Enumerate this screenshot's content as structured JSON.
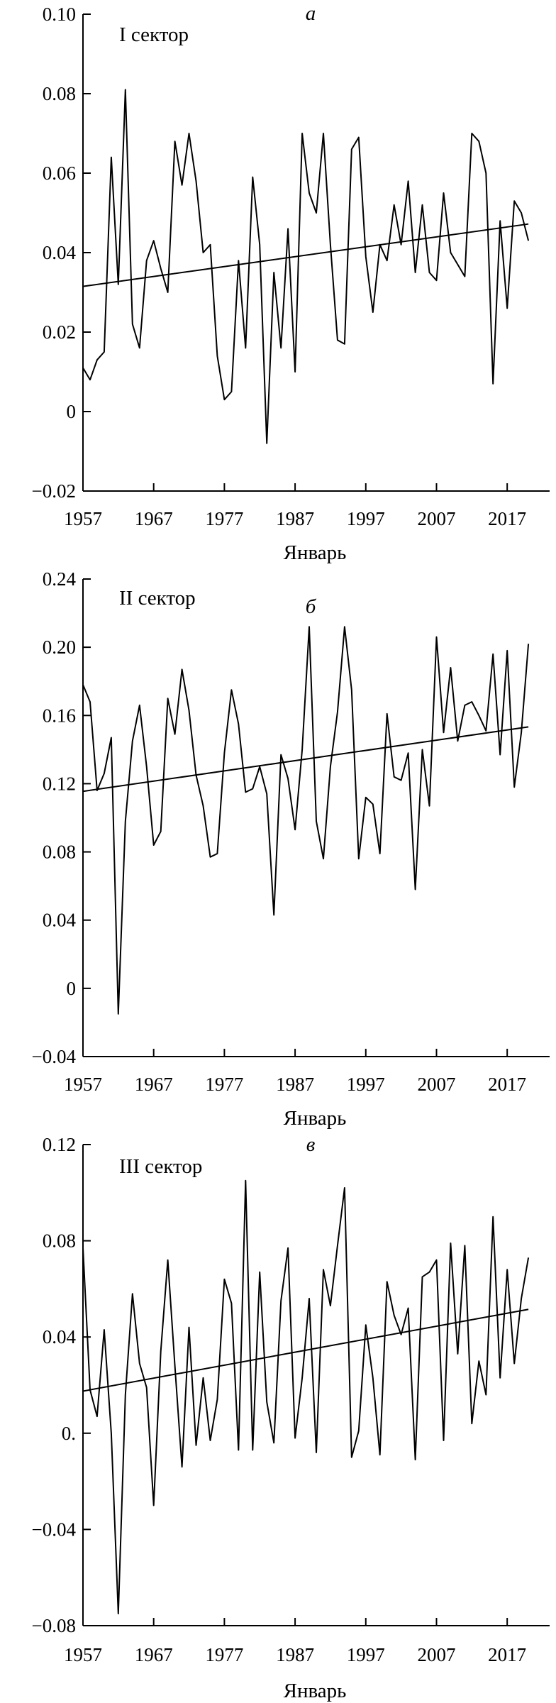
{
  "chart_data": [
    {
      "type": "line",
      "panel_letter": "а",
      "sector_label": "I сектор",
      "xlabel": "Январь",
      "ylabel": "",
      "xlim": [
        1957,
        2023
      ],
      "ylim": [
        -0.02,
        0.1
      ],
      "x_ticks": [
        "1957",
        "1967",
        "1977",
        "1987",
        "1997",
        "2007",
        "2017"
      ],
      "y_ticks": [
        "0.10",
        "0.08",
        "0.06",
        "0.04",
        "0.02",
        "0",
        "−0.02"
      ],
      "y_tick_values": [
        0.1,
        0.08,
        0.06,
        0.04,
        0.02,
        0,
        -0.02
      ],
      "grid": false,
      "series": [
        {
          "values": [
            [
              1957,
              0.011
            ],
            [
              1958,
              0.008
            ],
            [
              1959,
              0.013
            ],
            [
              1960,
              0.015
            ],
            [
              1961,
              0.064
            ],
            [
              1962,
              0.032
            ],
            [
              1963,
              0.081
            ],
            [
              1964,
              0.022
            ],
            [
              1965,
              0.016
            ],
            [
              1966,
              0.038
            ],
            [
              1967,
              0.043
            ],
            [
              1968,
              0.036
            ],
            [
              1969,
              0.03
            ],
            [
              1970,
              0.068
            ],
            [
              1971,
              0.057
            ],
            [
              1972,
              0.07
            ],
            [
              1973,
              0.058
            ],
            [
              1974,
              0.04
            ],
            [
              1975,
              0.042
            ],
            [
              1976,
              0.014
            ],
            [
              1977,
              0.003
            ],
            [
              1978,
              0.005
            ],
            [
              1979,
              0.038
            ],
            [
              1980,
              0.016
            ],
            [
              1981,
              0.059
            ],
            [
              1982,
              0.042
            ],
            [
              1983,
              -0.008
            ],
            [
              1984,
              0.035
            ],
            [
              1985,
              0.016
            ],
            [
              1986,
              0.046
            ],
            [
              1987,
              0.01
            ],
            [
              1988,
              0.07
            ],
            [
              1989,
              0.055
            ],
            [
              1990,
              0.05
            ],
            [
              1991,
              0.07
            ],
            [
              1992,
              0.042
            ],
            [
              1993,
              0.018
            ],
            [
              1994,
              0.017
            ],
            [
              1995,
              0.066
            ],
            [
              1996,
              0.069
            ],
            [
              1997,
              0.039
            ],
            [
              1998,
              0.025
            ],
            [
              1999,
              0.042
            ],
            [
              2000,
              0.038
            ],
            [
              2001,
              0.052
            ],
            [
              2002,
              0.042
            ],
            [
              2003,
              0.058
            ],
            [
              2004,
              0.035
            ],
            [
              2005,
              0.052
            ],
            [
              2006,
              0.035
            ],
            [
              2007,
              0.033
            ],
            [
              2008,
              0.055
            ],
            [
              2009,
              0.04
            ],
            [
              2010,
              0.037
            ],
            [
              2011,
              0.034
            ],
            [
              2012,
              0.07
            ],
            [
              2013,
              0.068
            ],
            [
              2014,
              0.06
            ],
            [
              2015,
              0.007
            ],
            [
              2016,
              0.048
            ],
            [
              2017,
              0.026
            ],
            [
              2018,
              0.053
            ],
            [
              2019,
              0.05
            ],
            [
              2020,
              0.043
            ]
          ]
        }
      ],
      "trend": [
        [
          1957,
          0.0315
        ],
        [
          2020,
          0.0472
        ]
      ]
    },
    {
      "type": "line",
      "panel_letter": "б",
      "sector_label": "II сектор",
      "xlabel": "Январь",
      "ylabel": "",
      "xlim": [
        1957,
        2023
      ],
      "ylim": [
        -0.04,
        0.24
      ],
      "x_ticks": [
        "1957",
        "1967",
        "1977",
        "1987",
        "1997",
        "2007",
        "2017"
      ],
      "y_ticks": [
        "0.24",
        "0.20",
        "0.16",
        "0.12",
        "0.08",
        "0.04",
        "0",
        "−0.04"
      ],
      "y_tick_values": [
        0.24,
        0.2,
        0.16,
        0.12,
        0.08,
        0.04,
        0,
        -0.04
      ],
      "grid": false,
      "series": [
        {
          "values": [
            [
              1957,
              0.178
            ],
            [
              1958,
              0.168
            ],
            [
              1959,
              0.116
            ],
            [
              1960,
              0.126
            ],
            [
              1961,
              0.147
            ],
            [
              1962,
              -0.015
            ],
            [
              1963,
              0.098
            ],
            [
              1964,
              0.145
            ],
            [
              1965,
              0.166
            ],
            [
              1966,
              0.13
            ],
            [
              1967,
              0.084
            ],
            [
              1968,
              0.092
            ],
            [
              1969,
              0.17
            ],
            [
              1970,
              0.149
            ],
            [
              1971,
              0.187
            ],
            [
              1972,
              0.163
            ],
            [
              1973,
              0.125
            ],
            [
              1974,
              0.107
            ],
            [
              1975,
              0.077
            ],
            [
              1976,
              0.079
            ],
            [
              1977,
              0.138
            ],
            [
              1978,
              0.175
            ],
            [
              1979,
              0.155
            ],
            [
              1980,
              0.115
            ],
            [
              1981,
              0.117
            ],
            [
              1982,
              0.13
            ],
            [
              1983,
              0.114
            ],
            [
              1984,
              0.043
            ],
            [
              1985,
              0.137
            ],
            [
              1986,
              0.123
            ],
            [
              1987,
              0.093
            ],
            [
              1988,
              0.14
            ],
            [
              1989,
              0.212
            ],
            [
              1990,
              0.098
            ],
            [
              1991,
              0.076
            ],
            [
              1992,
              0.13
            ],
            [
              1993,
              0.162
            ],
            [
              1994,
              0.212
            ],
            [
              1995,
              0.175
            ],
            [
              1996,
              0.076
            ],
            [
              1997,
              0.112
            ],
            [
              1998,
              0.108
            ],
            [
              1999,
              0.079
            ],
            [
              2000,
              0.161
            ],
            [
              2001,
              0.124
            ],
            [
              2002,
              0.122
            ],
            [
              2003,
              0.138
            ],
            [
              2004,
              0.058
            ],
            [
              2005,
              0.14
            ],
            [
              2006,
              0.107
            ],
            [
              2007,
              0.206
            ],
            [
              2008,
              0.15
            ],
            [
              2009,
              0.188
            ],
            [
              2010,
              0.145
            ],
            [
              2011,
              0.166
            ],
            [
              2012,
              0.168
            ],
            [
              2013,
              0.16
            ],
            [
              2014,
              0.151
            ],
            [
              2015,
              0.196
            ],
            [
              2016,
              0.137
            ],
            [
              2017,
              0.198
            ],
            [
              2018,
              0.118
            ],
            [
              2019,
              0.15
            ],
            [
              2020,
              0.202
            ]
          ]
        }
      ],
      "trend": [
        [
          1957,
          0.1155
        ],
        [
          2020,
          0.1533
        ]
      ]
    },
    {
      "type": "line",
      "panel_letter": "в",
      "sector_label": "III сектор",
      "xlabel": "Январь",
      "ylabel": "",
      "xlim": [
        1957,
        2023
      ],
      "ylim": [
        -0.08,
        0.12
      ],
      "x_ticks": [
        "1957",
        "1967",
        "1977",
        "1987",
        "1997",
        "2007",
        "2017"
      ],
      "y_ticks": [
        "0.12",
        "0.08",
        "0.04",
        "0.",
        "−0.04",
        "−0.08"
      ],
      "y_tick_values": [
        0.12,
        0.08,
        0.04,
        0,
        -0.04,
        -0.08
      ],
      "grid": false,
      "series": [
        {
          "values": [
            [
              1957,
              0.077
            ],
            [
              1958,
              0.018
            ],
            [
              1959,
              0.007
            ],
            [
              1960,
              0.043
            ],
            [
              1961,
              0.0
            ],
            [
              1962,
              -0.075
            ],
            [
              1963,
              0.016
            ],
            [
              1964,
              0.058
            ],
            [
              1965,
              0.029
            ],
            [
              1966,
              0.019
            ],
            [
              1967,
              -0.03
            ],
            [
              1968,
              0.034
            ],
            [
              1969,
              0.072
            ],
            [
              1970,
              0.028
            ],
            [
              1971,
              -0.014
            ],
            [
              1972,
              0.044
            ],
            [
              1973,
              -0.005
            ],
            [
              1974,
              0.023
            ],
            [
              1975,
              -0.003
            ],
            [
              1976,
              0.014
            ],
            [
              1977,
              0.064
            ],
            [
              1978,
              0.054
            ],
            [
              1979,
              -0.007
            ],
            [
              1980,
              0.105
            ],
            [
              1981,
              -0.007
            ],
            [
              1982,
              0.067
            ],
            [
              1983,
              0.013
            ],
            [
              1984,
              -0.004
            ],
            [
              1985,
              0.055
            ],
            [
              1986,
              0.077
            ],
            [
              1987,
              -0.002
            ],
            [
              1988,
              0.023
            ],
            [
              1989,
              0.056
            ],
            [
              1990,
              -0.008
            ],
            [
              1991,
              0.068
            ],
            [
              1992,
              0.053
            ],
            [
              1993,
              0.078
            ],
            [
              1994,
              0.102
            ],
            [
              1995,
              -0.01
            ],
            [
              1996,
              0.001
            ],
            [
              1997,
              0.045
            ],
            [
              1998,
              0.023
            ],
            [
              1999,
              -0.009
            ],
            [
              2000,
              0.063
            ],
            [
              2001,
              0.049
            ],
            [
              2002,
              0.041
            ],
            [
              2003,
              0.052
            ],
            [
              2004,
              -0.011
            ],
            [
              2005,
              0.065
            ],
            [
              2006,
              0.067
            ],
            [
              2007,
              0.072
            ],
            [
              2008,
              -0.003
            ],
            [
              2009,
              0.079
            ],
            [
              2010,
              0.033
            ],
            [
              2011,
              0.078
            ],
            [
              2012,
              0.004
            ],
            [
              2013,
              0.03
            ],
            [
              2014,
              0.016
            ],
            [
              2015,
              0.09
            ],
            [
              2016,
              0.023
            ],
            [
              2017,
              0.068
            ],
            [
              2018,
              0.029
            ],
            [
              2019,
              0.056
            ],
            [
              2020,
              0.073
            ]
          ]
        }
      ],
      "trend": [
        [
          1957,
          0.0175
        ],
        [
          2020,
          0.0515
        ]
      ]
    }
  ]
}
